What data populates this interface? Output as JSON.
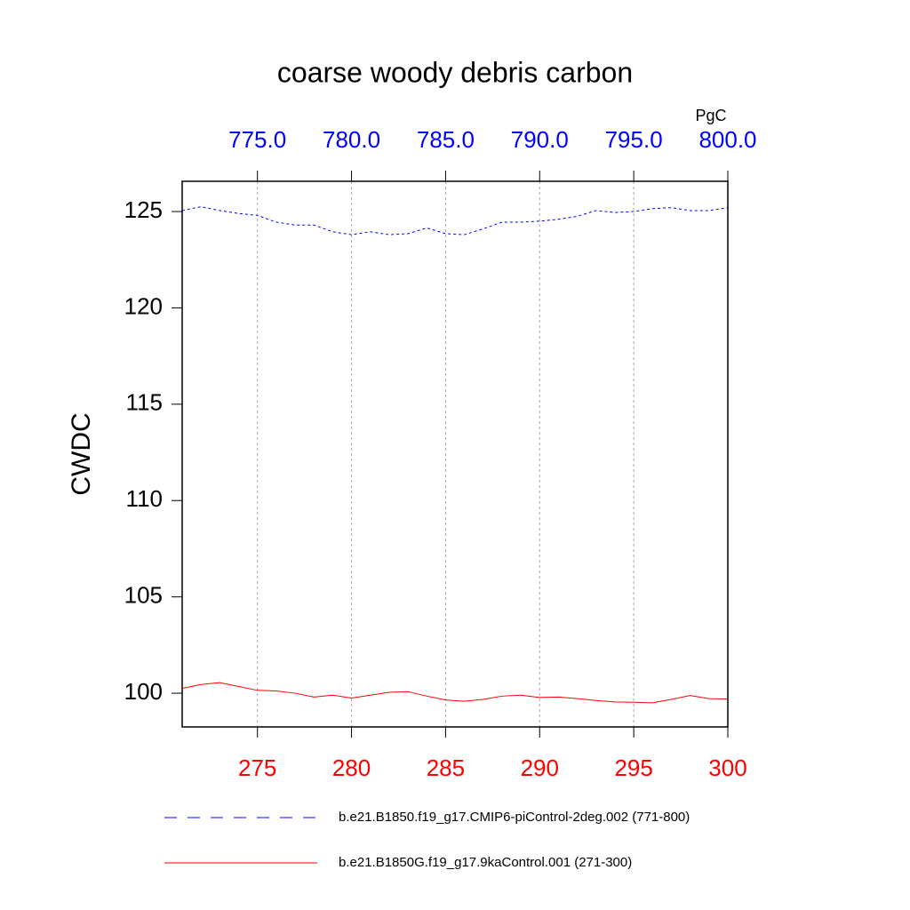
{
  "chart_data": {
    "type": "line",
    "title": "coarse woody debris carbon",
    "y_label": "CWDC",
    "x2_unit": "PgC",
    "xlim": [
      271,
      300
    ],
    "xticks": [
      275,
      280,
      285,
      290,
      295,
      300
    ],
    "xtick_color": "#ff0000",
    "x2lim": [
      771,
      800
    ],
    "x2ticks": [
      {
        "value": 775,
        "label": "775.0"
      },
      {
        "value": 780,
        "label": "780.0"
      },
      {
        "value": 785,
        "label": "785.0"
      },
      {
        "value": 790,
        "label": "790.0"
      },
      {
        "value": 795,
        "label": "795.0"
      },
      {
        "value": 800,
        "label": "800.0"
      }
    ],
    "x2tick_color": "#0000ff",
    "ylim": [
      98.25,
      126.57
    ],
    "yticks": [
      100,
      105,
      110,
      115,
      120,
      125
    ],
    "grid": true,
    "series": [
      {
        "name": "b.e21.B1850.f19_g17.CMIP6-piControl-2deg.002 (771-800)",
        "color": "#0000ff",
        "dashed": true,
        "axis": "x2",
        "x": [
          771,
          772,
          773,
          774,
          775,
          776,
          777,
          778,
          779,
          780,
          781,
          782,
          783,
          784,
          785,
          786,
          787,
          788,
          789,
          790,
          791,
          792,
          793,
          794,
          795,
          796,
          797,
          798,
          799,
          800
        ],
        "values": [
          125.05,
          125.25,
          125.05,
          124.9,
          124.8,
          124.45,
          124.3,
          124.3,
          123.95,
          123.8,
          123.95,
          123.8,
          123.85,
          124.15,
          123.85,
          123.8,
          124.1,
          124.45,
          124.45,
          124.5,
          124.6,
          124.75,
          125.05,
          124.95,
          125.0,
          125.15,
          125.2,
          125.05,
          125.05,
          125.2
        ]
      },
      {
        "name": "b.e21.B1850G.f19_g17.9kaControl.001 (271-300)",
        "color": "#ff0000",
        "dashed": false,
        "x": [
          271,
          272,
          273,
          274,
          275,
          276,
          277,
          278,
          279,
          280,
          281,
          282,
          283,
          284,
          285,
          286,
          287,
          288,
          289,
          290,
          291,
          292,
          293,
          294,
          295,
          296,
          297,
          298,
          299,
          300
        ],
        "values": [
          100.25,
          100.45,
          100.55,
          100.35,
          100.15,
          100.12,
          100.0,
          99.8,
          99.9,
          99.75,
          99.9,
          100.05,
          100.08,
          99.85,
          99.65,
          99.58,
          99.68,
          99.85,
          99.9,
          99.78,
          99.8,
          99.72,
          99.62,
          99.55,
          99.53,
          99.5,
          99.68,
          99.88,
          99.72,
          99.7
        ]
      }
    ]
  }
}
